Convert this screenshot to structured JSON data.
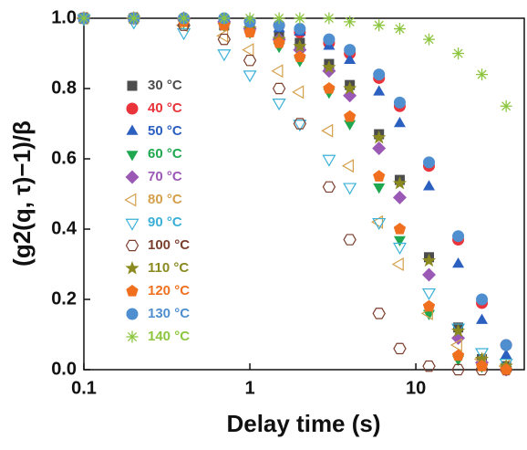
{
  "chart_data": {
    "type": "scatter",
    "x_label": "Delay time (s)",
    "y_label": "(g2(q, τ)−1)/β",
    "xscale": "log",
    "xlim": [
      0.1,
      45
    ],
    "xticks": [
      0.1,
      1,
      10
    ],
    "ylim": [
      0,
      1
    ],
    "yticks": [
      {
        "value": 0,
        "label": "0.0"
      },
      0.2,
      0.4,
      0.6,
      0.8,
      {
        "value": 1,
        "label": "1.0"
      }
    ],
    "legend": "left",
    "x": [
      0.1,
      0.2,
      0.4,
      0.7,
      1,
      1.5,
      2,
      3,
      4,
      6,
      8,
      12,
      18,
      25,
      35
    ],
    "series": [
      {
        "name": "30 °C",
        "color": "#4d4d4d",
        "marker": "square",
        "open": false,
        "values": [
          1.0,
          1.0,
          0.99,
          0.98,
          0.97,
          0.95,
          0.93,
          0.87,
          0.81,
          0.67,
          0.54,
          0.32,
          0.12,
          0.03,
          0.01
        ]
      },
      {
        "name": "40 °C",
        "color": "#e8343a",
        "marker": "circle",
        "open": false,
        "values": [
          1.0,
          1.0,
          1.0,
          0.99,
          0.99,
          0.98,
          0.96,
          0.93,
          0.9,
          0.83,
          0.75,
          0.58,
          0.37,
          0.19,
          0.07
        ]
      },
      {
        "name": "50 °C",
        "color": "#2b5fc0",
        "marker": "triangle-up",
        "open": false,
        "values": [
          1.0,
          1.0,
          1.0,
          0.99,
          0.98,
          0.97,
          0.96,
          0.92,
          0.88,
          0.79,
          0.7,
          0.52,
          0.3,
          0.14,
          0.04
        ]
      },
      {
        "name": "60 °C",
        "color": "#1fa84f",
        "marker": "triangle-down",
        "open": false,
        "values": [
          1.0,
          1.0,
          0.99,
          0.98,
          0.96,
          0.92,
          0.88,
          0.79,
          0.7,
          0.52,
          0.37,
          0.16,
          0.03,
          0.01,
          0
        ]
      },
      {
        "name": "70 °C",
        "color": "#9b59b6",
        "marker": "diamond",
        "open": false,
        "values": [
          1.0,
          1.0,
          1.0,
          0.99,
          0.97,
          0.94,
          0.91,
          0.85,
          0.78,
          0.63,
          0.49,
          0.27,
          0.09,
          0.02,
          0
        ]
      },
      {
        "name": "80 °C",
        "color": "#d4a04c",
        "marker": "triangle-left",
        "open": true,
        "values": [
          1.0,
          1.0,
          0.98,
          0.95,
          0.91,
          0.85,
          0.79,
          0.68,
          0.58,
          0.42,
          0.3,
          0.16,
          0.07,
          0.03,
          0.01
        ]
      },
      {
        "name": "90 °C",
        "color": "#3ab0d8",
        "marker": "triangle-down",
        "open": true,
        "values": [
          1.0,
          0.99,
          0.96,
          0.9,
          0.84,
          0.76,
          0.7,
          0.6,
          0.52,
          0.42,
          0.35,
          0.22,
          0.12,
          0.05,
          0.02
        ]
      },
      {
        "name": "100 °C",
        "color": "#7b3f2e",
        "marker": "hexagon",
        "open": true,
        "values": [
          1.0,
          1.0,
          0.98,
          0.94,
          0.88,
          0.8,
          0.7,
          0.52,
          0.37,
          0.16,
          0.06,
          0.01,
          0,
          0,
          0
        ]
      },
      {
        "name": "110 °C",
        "color": "#8a8a20",
        "marker": "star",
        "open": false,
        "values": [
          1.0,
          1.0,
          0.99,
          0.98,
          0.97,
          0.94,
          0.92,
          0.86,
          0.8,
          0.66,
          0.53,
          0.31,
          0.11,
          0.03,
          0.01
        ]
      },
      {
        "name": "120 °C",
        "color": "#f07020",
        "marker": "pentagon",
        "open": false,
        "values": [
          1.0,
          1.0,
          0.99,
          0.98,
          0.96,
          0.93,
          0.89,
          0.8,
          0.72,
          0.55,
          0.4,
          0.18,
          0.04,
          0.01,
          0
        ]
      },
      {
        "name": "130 °C",
        "color": "#4f8fd0",
        "marker": "circle",
        "open": false,
        "values": [
          1.0,
          1.0,
          1.0,
          1.0,
          0.99,
          0.98,
          0.97,
          0.94,
          0.91,
          0.84,
          0.76,
          0.59,
          0.38,
          0.2,
          0.07
        ]
      },
      {
        "name": "140 °C",
        "color": "#8cc63f",
        "marker": "asterisk",
        "open": false,
        "values": [
          1.0,
          1.0,
          1.0,
          1.0,
          1.0,
          1.0,
          1.0,
          1.0,
          0.99,
          0.98,
          0.97,
          0.94,
          0.9,
          0.84,
          0.75
        ]
      }
    ]
  }
}
